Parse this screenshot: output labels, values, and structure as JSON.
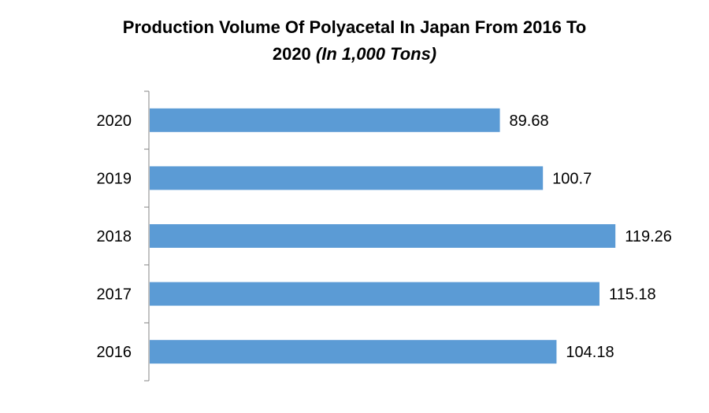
{
  "chart_data": {
    "type": "bar",
    "orientation": "horizontal",
    "title_line1": "Production Volume Of Polyacetal In Japan From 2016 To",
    "title_line2_main": "2020",
    "title_line2_unit": "(In 1,000 Tons)",
    "categories": [
      "2016",
      "2017",
      "2018",
      "2019",
      "2020"
    ],
    "values": [
      104.18,
      115.18,
      119.26,
      100.7,
      89.68
    ],
    "value_labels": [
      "104.18",
      "115.18",
      "119.26",
      "100.7",
      "89.68"
    ],
    "category_order": "bottom-to-top",
    "xlim": [
      0,
      140
    ],
    "grid": false,
    "legend": "none",
    "bar_color": "#5b9bd5",
    "axis_color": "#868686",
    "text_color": "#000000"
  }
}
